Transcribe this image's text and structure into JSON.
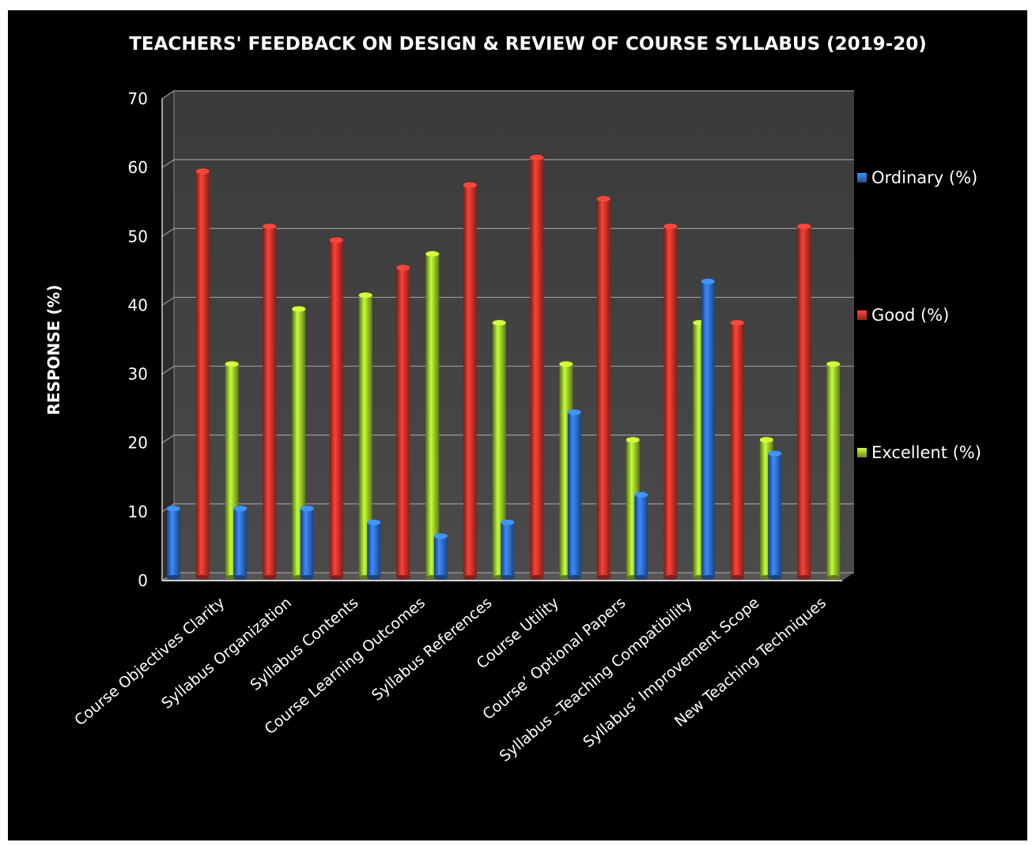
{
  "chart_data": {
    "type": "bar",
    "title": "TEACHERS' FEEDBACK ON DESIGN & REVIEW OF COURSE SYLLABUS (2019-20)",
    "ylabel": "RESPONSE (%)",
    "xlabel": "",
    "ylim": [
      0,
      70
    ],
    "yticks": [
      0,
      10,
      20,
      30,
      40,
      50,
      60,
      70
    ],
    "grid": true,
    "legend_position": "right",
    "categories": [
      "Course Objectives Clarity",
      "Syllabus Organization",
      "Syllabus Contents",
      "Course Learning Outcomes",
      "Syllabus References",
      "Course Utility",
      "Course’ Optional Papers",
      "Syllabus –Teaching Compatibility",
      "Syllabus’ Improvement Scope",
      "New Teaching Techniques"
    ],
    "series": [
      {
        "name": "Ordinary (%)",
        "color": "#2f6fd0",
        "values": [
          10,
          10,
          10,
          8,
          6,
          8,
          24,
          12,
          43,
          18
        ]
      },
      {
        "name": "Good (%)",
        "color": "#d9342b",
        "values": [
          59,
          51,
          49,
          45,
          57,
          61,
          55,
          51,
          37,
          51
        ]
      },
      {
        "name": "Excellent (%)",
        "color": "#9ccc2c",
        "values": [
          31,
          39,
          41,
          47,
          37,
          31,
          20,
          37,
          20,
          31
        ]
      }
    ]
  }
}
